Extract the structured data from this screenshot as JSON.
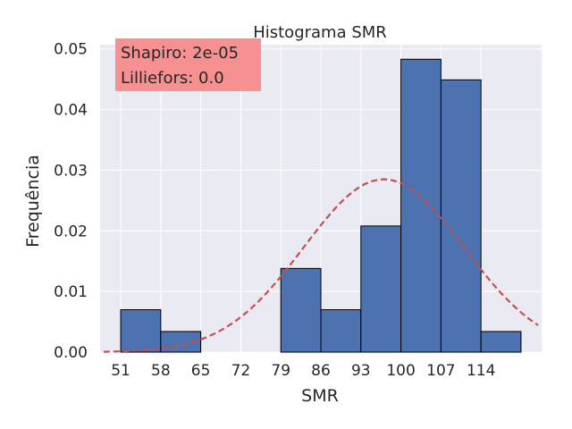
{
  "chart_data": {
    "type": "bar",
    "title": "Histograma SMR",
    "xlabel": "SMR",
    "ylabel": "Frequência",
    "annotation": [
      "Shapiro: 2e-05",
      "Lilliefors: 0.0"
    ],
    "bins": [
      {
        "start": 51,
        "end": 58,
        "value": 0.007
      },
      {
        "start": 58,
        "end": 65,
        "value": 0.0034
      },
      {
        "start": 65,
        "end": 72,
        "value": 0.0
      },
      {
        "start": 72,
        "end": 79,
        "value": 0.0
      },
      {
        "start": 79,
        "end": 86,
        "value": 0.0138
      },
      {
        "start": 86,
        "end": 93,
        "value": 0.007
      },
      {
        "start": 93,
        "end": 100,
        "value": 0.0208
      },
      {
        "start": 100,
        "end": 107,
        "value": 0.0483
      },
      {
        "start": 107,
        "end": 114,
        "value": 0.0449
      },
      {
        "start": 114,
        "end": 121,
        "value": 0.0034
      }
    ],
    "xticks": [
      51,
      58,
      65,
      72,
      79,
      86,
      93,
      100,
      107,
      114
    ],
    "yticks": [
      "0.00",
      "0.01",
      "0.02",
      "0.03",
      "0.04",
      "0.05"
    ],
    "xlim": [
      47.4,
      124.6
    ],
    "ylim": [
      0,
      0.0507
    ],
    "normal_curve": {
      "mean": 97.0,
      "std": 14.0,
      "x_range": [
        48,
        124
      ]
    },
    "grid": true,
    "colors": {
      "background": "#eaeaf2",
      "bar_fill": "#4c72b0",
      "bar_edge": "#000000",
      "curve": "#c44e52",
      "annotation_bg": "#f79090",
      "grid": "#ffffff"
    }
  }
}
